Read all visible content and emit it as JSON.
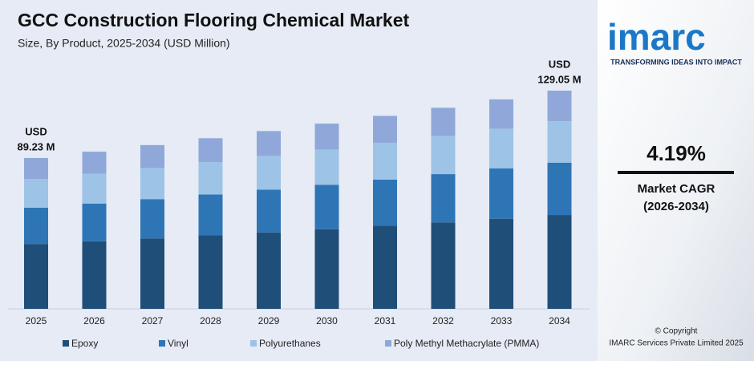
{
  "chart_data": {
    "type": "stacked-bar",
    "title": "GCC Construction Flooring Chemical Market",
    "subtitle": "Size, By Product, 2025-2034 (USD Million)",
    "categories": [
      "2025",
      "2026",
      "2027",
      "2028",
      "2029",
      "2030",
      "2031",
      "2032",
      "2033",
      "2034"
    ],
    "series": [
      {
        "name": "Epoxy",
        "color": "#1f4e79",
        "values": [
          38.37,
          39.98,
          41.65,
          43.4,
          45.21,
          47.11,
          49.08,
          51.14,
          53.28,
          55.49
        ]
      },
      {
        "name": "Vinyl",
        "color": "#2e75b6",
        "values": [
          21.42,
          22.31,
          23.25,
          24.22,
          25.24,
          26.29,
          27.39,
          28.54,
          29.74,
          30.97
        ]
      },
      {
        "name": "Polyurethanes",
        "color": "#9dc3e6",
        "values": [
          16.95,
          17.66,
          18.4,
          19.17,
          19.98,
          20.81,
          21.69,
          22.6,
          23.54,
          24.52
        ]
      },
      {
        "name": "Poly Methyl Methacrylate (PMMA)",
        "color": "#8fa8d9",
        "values": [
          12.49,
          13.02,
          13.56,
          14.13,
          14.72,
          15.34,
          15.98,
          16.65,
          17.35,
          18.07
        ]
      }
    ],
    "annotations": [
      {
        "lines": [
          "USD",
          "89.23 M"
        ]
      },
      {
        "lines": [
          "USD",
          "129.05 M"
        ]
      }
    ]
  },
  "sidebar": {
    "logo": "imarc",
    "tagline": "TRANSFORMING IDEAS INTO IMPACT",
    "cagr": "4.19%",
    "cagr_label": "Market CAGR",
    "cagr_period": "(2026-2034)",
    "copyright": "© Copyright",
    "company": "IMARC Services Private Limited 2025"
  }
}
